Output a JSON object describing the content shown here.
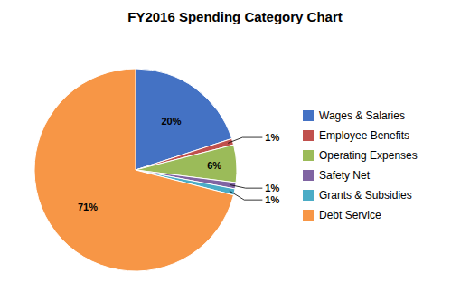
{
  "chart_data": {
    "type": "pie",
    "title": "FY2016 Spending Category Chart",
    "categories": [
      "Wages & Salaries",
      "Employee Benefits",
      "Operating Expenses",
      "Safety Net",
      "Grants & Subsidies",
      "Debt Service"
    ],
    "values": [
      20,
      1,
      6,
      1,
      1,
      71
    ],
    "value_labels": [
      "20%",
      "1%",
      "6%",
      "1%",
      "1%",
      "71%"
    ],
    "colors": [
      "#4472C4",
      "#C0504D",
      "#9BBB59",
      "#8064A2",
      "#4BACC6",
      "#F79646"
    ],
    "data_labels": true,
    "legend": "right"
  }
}
